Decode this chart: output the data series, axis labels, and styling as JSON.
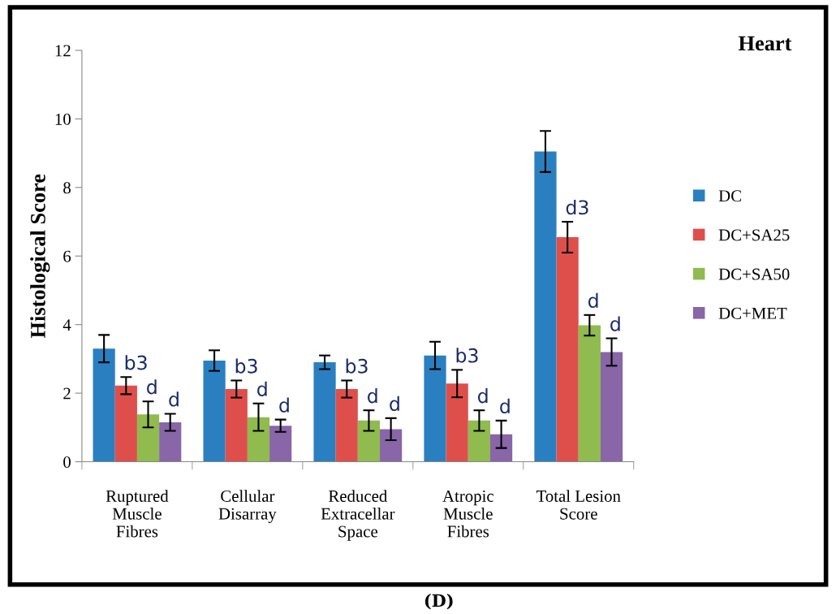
{
  "chart_data": {
    "type": "bar",
    "title": "Heart",
    "ylabel": "Histological Score",
    "categories": [
      "Ruptured\nMuscle\nFibres",
      "Cellular\nDisarray",
      "Reduced\nExtracellar\nSpace",
      "Atropic\nMuscle\nFibres",
      "Total Lesion\nScore"
    ],
    "series": [
      {
        "name": "DC",
        "color": "#2a7fc0",
        "values": [
          3.3,
          2.95,
          2.9,
          3.1,
          9.05
        ],
        "errors": [
          0.4,
          0.3,
          0.2,
          0.4,
          0.6
        ]
      },
      {
        "name": "DC+SA25",
        "color": "#de4f4c",
        "values": [
          2.22,
          2.12,
          2.12,
          2.28,
          6.55
        ],
        "errors": [
          0.25,
          0.25,
          0.25,
          0.4,
          0.45
        ],
        "value_labels": [
          "b3",
          "b3",
          "b3",
          "b3",
          "d3"
        ]
      },
      {
        "name": "DC+SA50",
        "color": "#8fbb4f",
        "values": [
          1.38,
          1.3,
          1.2,
          1.2,
          3.98
        ],
        "errors": [
          0.38,
          0.4,
          0.3,
          0.3,
          0.3
        ],
        "value_labels": [
          "d",
          "d",
          "d",
          "d",
          "d"
        ]
      },
      {
        "name": "DC+MET",
        "color": "#8866a8",
        "values": [
          1.15,
          1.05,
          0.95,
          0.8,
          3.2
        ],
        "errors": [
          0.25,
          0.18,
          0.32,
          0.4,
          0.4
        ],
        "value_labels": [
          "d",
          "d",
          "d",
          "d",
          "d"
        ]
      }
    ],
    "ylim": [
      0,
      12
    ],
    "yticks": [
      0,
      2,
      4,
      6,
      8,
      10,
      12
    ],
    "legend": "right",
    "grid": false,
    "annotations": [
      "(D)"
    ]
  }
}
